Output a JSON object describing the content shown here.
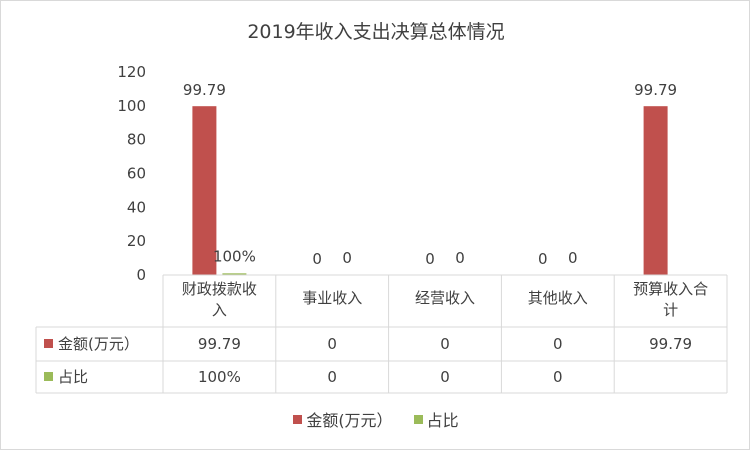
{
  "chart_data": {
    "type": "bar",
    "title": "2019年收入支出决算总体情况",
    "categories": [
      [
        "财政拨款收",
        "入"
      ],
      [
        "事业收入"
      ],
      [
        "经营收入"
      ],
      [
        "其他收入"
      ],
      [
        "预算收入合",
        "计"
      ]
    ],
    "series": [
      {
        "name": "金额(万元）",
        "color": "#c0504d",
        "values": [
          99.79,
          0,
          0,
          0,
          99.79
        ],
        "labels": [
          "99.79",
          "0",
          "0",
          "0",
          "99.79"
        ]
      },
      {
        "name": "占比",
        "color": "#9bbb59",
        "values": [
          1,
          0,
          0,
          0,
          null
        ],
        "labels": [
          "100%",
          "0",
          "0",
          "0",
          ""
        ]
      }
    ],
    "ylim": [
      0,
      120
    ],
    "yticks": [
      0,
      20,
      40,
      60,
      80,
      100,
      120
    ],
    "xlabel": "",
    "ylabel": "",
    "grid": false,
    "legend": "bottom",
    "data_table": true
  }
}
